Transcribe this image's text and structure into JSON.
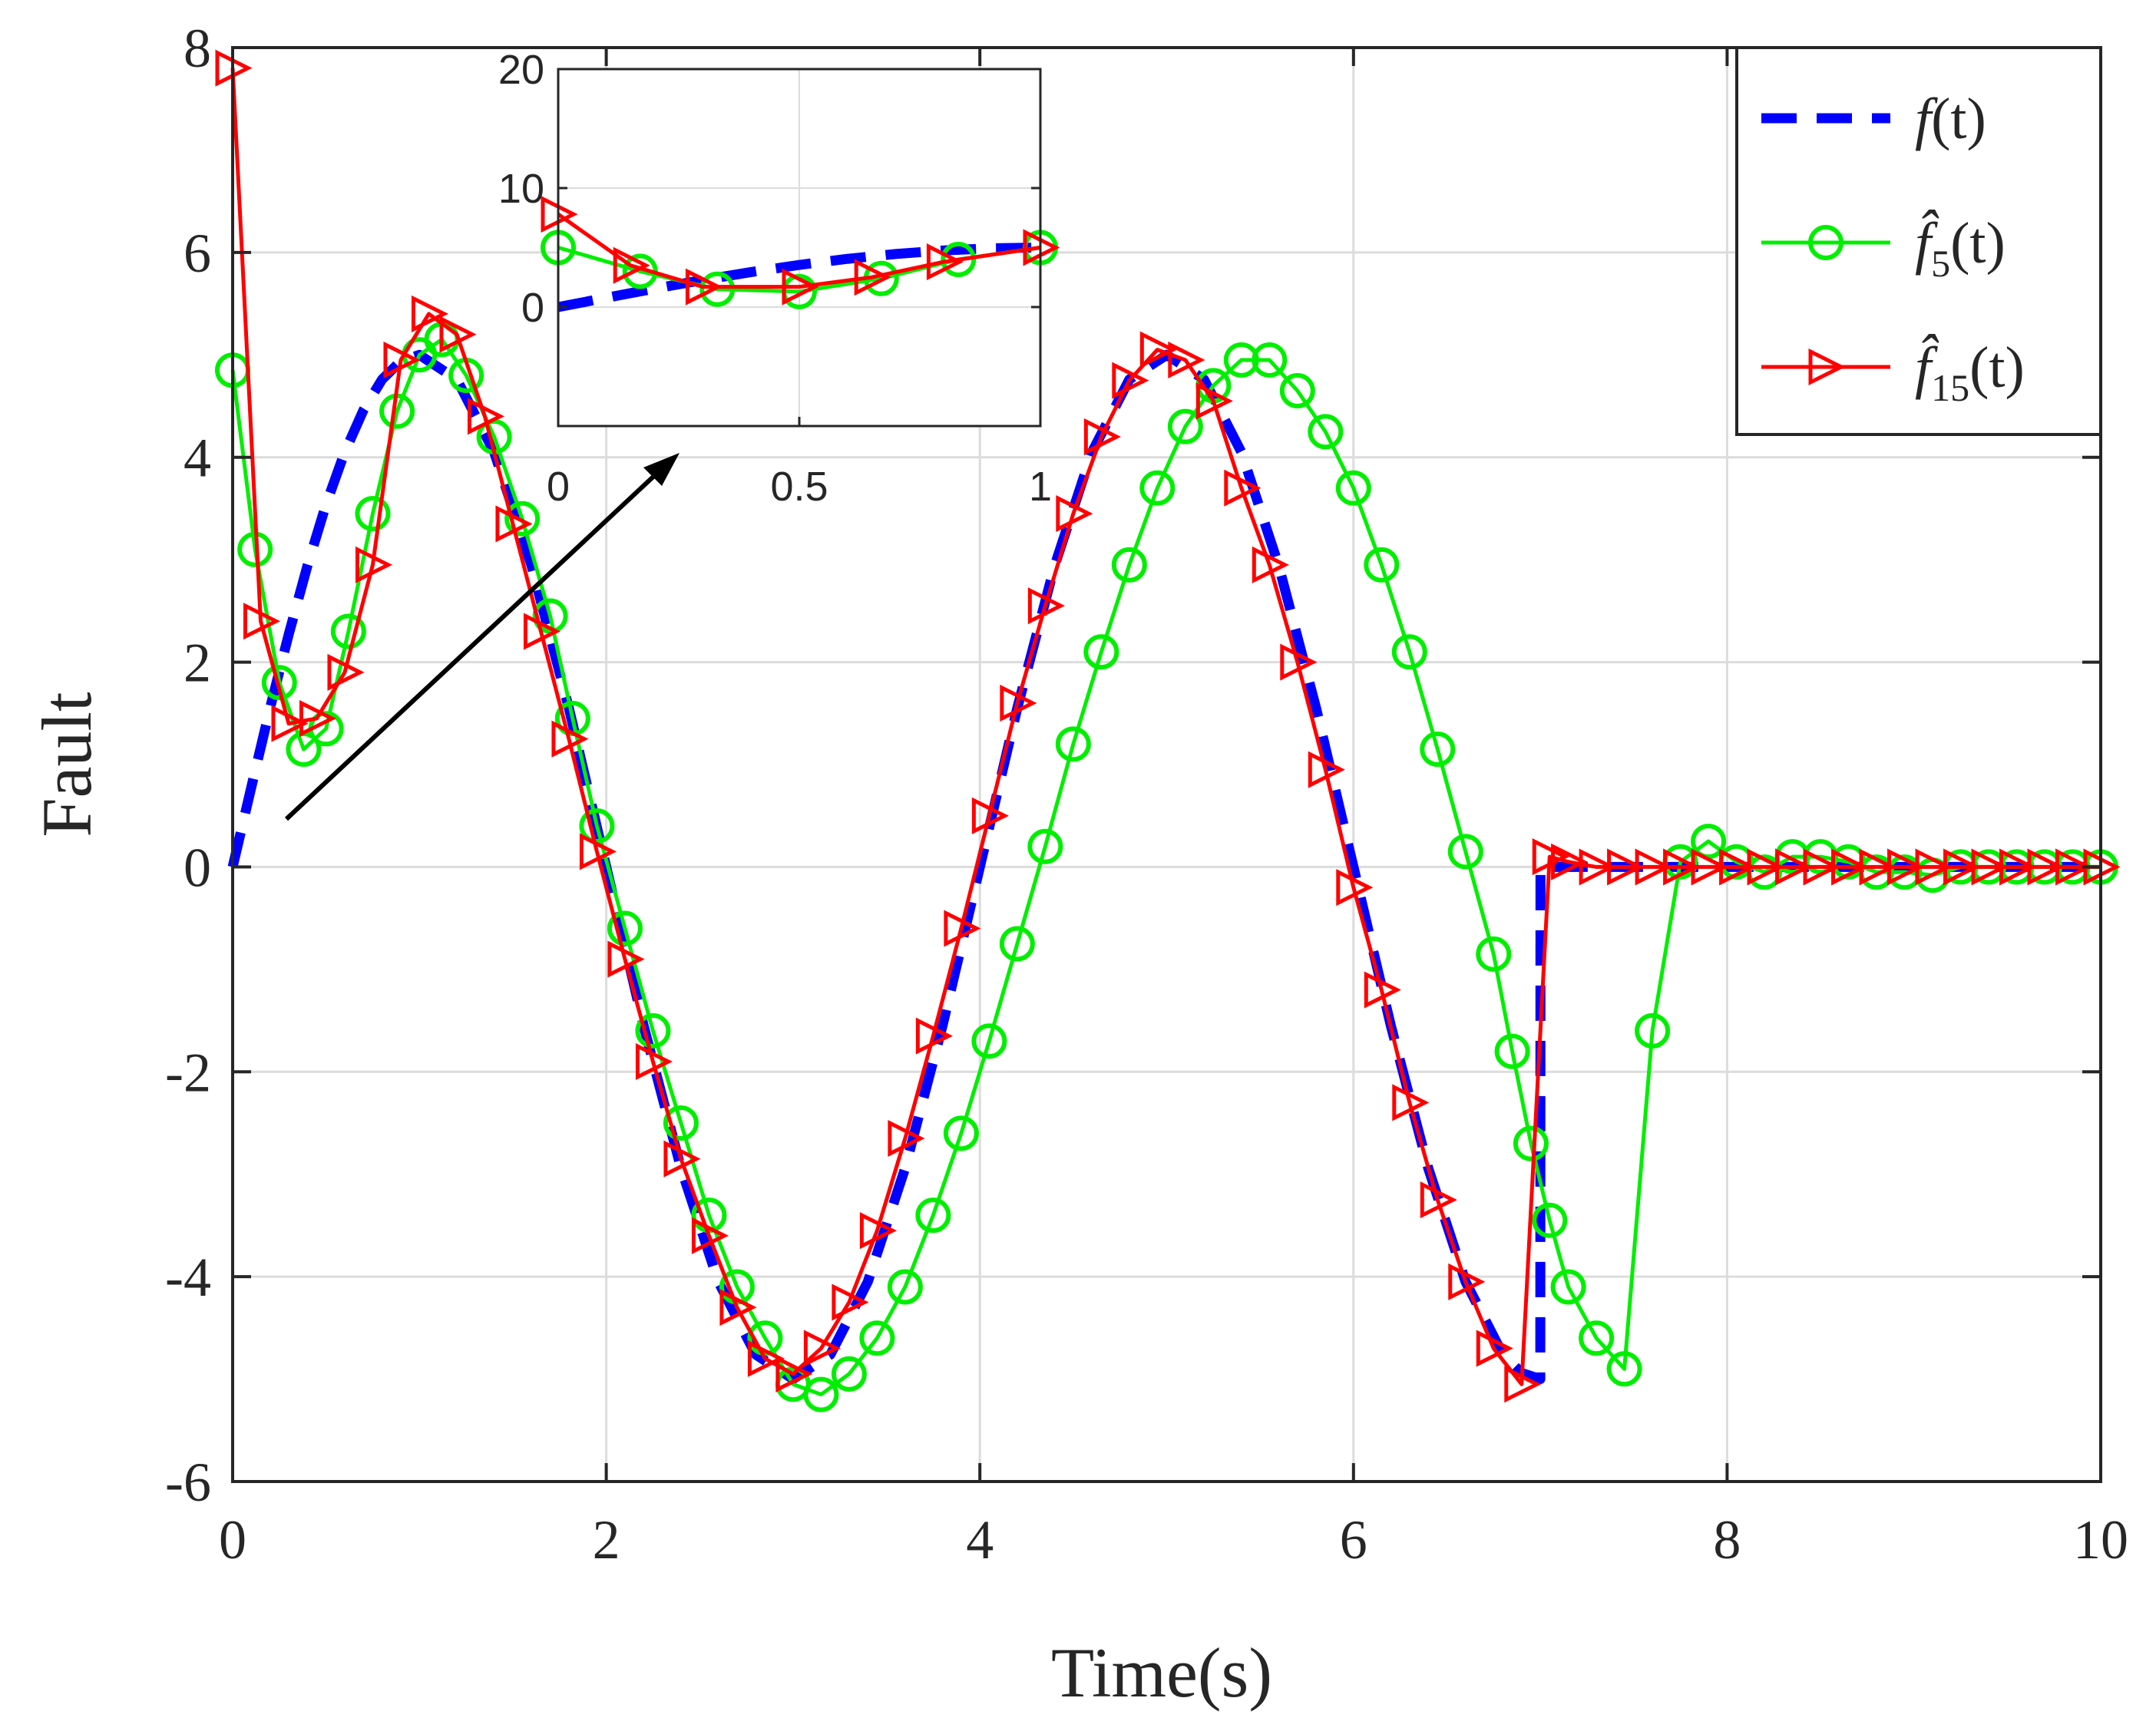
{
  "chart_data": {
    "type": "line",
    "title": "",
    "xlabel": "Time(s)",
    "ylabel": "Fault",
    "xlim": [
      0,
      10
    ],
    "ylim": [
      -6,
      8
    ],
    "xticks": [
      0,
      2,
      4,
      6,
      8,
      10
    ],
    "xtick_labels": [
      "0",
      "2",
      "4",
      "6",
      "8",
      "10"
    ],
    "yticks": [
      -6,
      -4,
      -2,
      0,
      2,
      4,
      6,
      8
    ],
    "ytick_labels": [
      "-6",
      "-4",
      "-2",
      "0",
      "2",
      "4",
      "6",
      "8"
    ],
    "grid": true,
    "legend_position": "top-right",
    "series": [
      {
        "name": "f(t)",
        "legend_main": "f",
        "legend_sub": "",
        "legend_arg": "(t)",
        "color": "#0000ff",
        "style": "dashed",
        "marker": "none",
        "x": [
          0,
          0.1,
          0.2,
          0.3,
          0.4,
          0.5,
          0.6,
          0.7,
          0.8,
          0.9,
          1.0,
          1.2,
          1.4,
          1.6,
          1.8,
          2.0,
          2.2,
          2.4,
          2.6,
          2.8,
          3.0,
          3.2,
          3.4,
          3.6,
          3.8,
          4.0,
          4.2,
          4.4,
          4.6,
          4.8,
          5.0,
          5.2,
          5.4,
          5.6,
          5.8,
          6.0,
          6.2,
          6.4,
          6.6,
          6.8,
          6.9,
          7.0,
          7.001,
          8.0,
          9.0,
          10.0
        ],
        "y": [
          0,
          0.78,
          1.55,
          2.27,
          2.94,
          3.54,
          4.05,
          4.46,
          4.76,
          4.94,
          5.0,
          4.76,
          4.05,
          2.94,
          1.55,
          0,
          -1.55,
          -2.94,
          -4.05,
          -4.76,
          -5.0,
          -4.76,
          -4.05,
          -2.94,
          -1.55,
          0,
          1.55,
          2.94,
          4.05,
          4.76,
          5.0,
          4.76,
          4.05,
          2.94,
          1.55,
          0,
          -1.55,
          -2.94,
          -4.05,
          -4.76,
          -4.94,
          -5.0,
          0,
          0,
          0,
          0
        ]
      },
      {
        "name": "f̂5(t)",
        "legend_main": "f̂",
        "legend_sub": "5",
        "legend_arg": "(t)",
        "color": "#00ee00",
        "style": "solid",
        "marker": "circle",
        "x": [
          0,
          0.12,
          0.25,
          0.38,
          0.5,
          0.62,
          0.75,
          0.88,
          1.0,
          1.12,
          1.25,
          1.4,
          1.55,
          1.7,
          1.82,
          1.95,
          2.1,
          2.25,
          2.4,
          2.55,
          2.7,
          2.85,
          3.0,
          3.15,
          3.3,
          3.45,
          3.6,
          3.75,
          3.9,
          4.05,
          4.2,
          4.35,
          4.5,
          4.65,
          4.8,
          4.95,
          5.1,
          5.25,
          5.4,
          5.55,
          5.7,
          5.85,
          6.0,
          6.15,
          6.3,
          6.45,
          6.6,
          6.75,
          6.85,
          6.95,
          7.05,
          7.15,
          7.3,
          7.45,
          7.6,
          7.75,
          7.9,
          8.05,
          8.2,
          8.35,
          8.5,
          8.65,
          8.8,
          8.95,
          9.1,
          9.25,
          9.4,
          9.55,
          9.7,
          9.85,
          10.0
        ],
        "y": [
          4.85,
          3.1,
          1.8,
          1.15,
          1.35,
          2.3,
          3.45,
          4.45,
          5.0,
          5.15,
          4.8,
          4.2,
          3.4,
          2.45,
          1.45,
          0.4,
          -0.6,
          -1.6,
          -2.5,
          -3.4,
          -4.1,
          -4.6,
          -5.05,
          -5.15,
          -4.95,
          -4.6,
          -4.1,
          -3.4,
          -2.6,
          -1.7,
          -0.75,
          0.2,
          1.2,
          2.1,
          2.95,
          3.7,
          4.3,
          4.7,
          4.95,
          4.95,
          4.65,
          4.25,
          3.7,
          2.95,
          2.1,
          1.15,
          0.15,
          -0.85,
          -1.8,
          -2.7,
          -3.45,
          -4.1,
          -4.6,
          -4.9,
          -1.6,
          0.05,
          0.25,
          0.05,
          -0.05,
          0.1,
          0.1,
          0.05,
          -0.05,
          -0.05,
          -0.08,
          0.0,
          0.0,
          0.0,
          0.0,
          0.0,
          0.0
        ]
      },
      {
        "name": "f̂15(t)",
        "legend_main": "f̂",
        "legend_sub": "15",
        "legend_arg": "(t)",
        "color": "#ff0000",
        "style": "solid",
        "marker": "triangle-right",
        "x": [
          0,
          0.15,
          0.3,
          0.45,
          0.6,
          0.75,
          0.9,
          1.05,
          1.2,
          1.35,
          1.5,
          1.65,
          1.8,
          1.95,
          2.1,
          2.25,
          2.4,
          2.55,
          2.7,
          2.85,
          3.0,
          3.15,
          3.3,
          3.45,
          3.6,
          3.75,
          3.9,
          4.05,
          4.2,
          4.35,
          4.5,
          4.65,
          4.8,
          4.95,
          5.1,
          5.25,
          5.4,
          5.55,
          5.7,
          5.85,
          6.0,
          6.15,
          6.3,
          6.45,
          6.6,
          6.75,
          6.9,
          7.05,
          7.15,
          7.3,
          7.45,
          7.6,
          7.75,
          7.9,
          8.05,
          8.2,
          8.35,
          8.5,
          8.65,
          8.8,
          8.95,
          9.1,
          9.25,
          9.4,
          9.55,
          9.7,
          9.85,
          10.0
        ],
        "y": [
          7.8,
          2.4,
          1.4,
          1.45,
          1.9,
          2.95,
          4.95,
          5.4,
          5.2,
          4.4,
          3.35,
          2.3,
          1.25,
          0.15,
          -0.9,
          -1.9,
          -2.85,
          -3.6,
          -4.3,
          -4.8,
          -4.95,
          -4.7,
          -4.25,
          -3.55,
          -2.65,
          -1.65,
          -0.6,
          0.5,
          1.6,
          2.55,
          3.45,
          4.2,
          4.75,
          5.05,
          4.95,
          4.55,
          3.7,
          2.95,
          2.0,
          0.95,
          -0.2,
          -1.2,
          -2.3,
          -3.25,
          -4.05,
          -4.7,
          -5.05,
          0.1,
          0.05,
          0.0,
          0.0,
          0.0,
          0.0,
          0.0,
          0.0,
          0.0,
          0.0,
          0.0,
          0.0,
          0.0,
          0.0,
          0.0,
          0.0,
          0.0,
          0.0,
          0.0,
          0.0,
          0.0
        ]
      }
    ],
    "inset": {
      "xlim": [
        0,
        1
      ],
      "ylim": [
        -10,
        20
      ],
      "xticks": [
        0,
        0.5,
        1
      ],
      "xtick_labels": [
        "0",
        "0.5",
        "1"
      ],
      "yticks": [
        0,
        10,
        20
      ],
      "ytick_labels": [
        "0",
        "10",
        "20"
      ],
      "grid": true,
      "series": [
        {
          "name": "f(t)",
          "x": [
            0,
            0.1,
            0.2,
            0.3,
            0.4,
            0.5,
            0.6,
            0.7,
            0.8,
            0.9,
            1.0
          ],
          "y": [
            0,
            0.78,
            1.55,
            2.27,
            2.94,
            3.54,
            4.05,
            4.46,
            4.76,
            4.94,
            5.0
          ]
        },
        {
          "name": "f̂5(t)",
          "x": [
            0,
            0.17,
            0.33,
            0.5,
            0.67,
            0.83,
            1.0
          ],
          "y": [
            5.0,
            3.0,
            1.5,
            1.3,
            2.4,
            4.0,
            5.0
          ]
        },
        {
          "name": "f̂15(t)",
          "x": [
            0,
            0.15,
            0.3,
            0.5,
            0.65,
            0.8,
            1.0
          ],
          "y": [
            7.8,
            3.5,
            1.7,
            1.7,
            2.5,
            3.8,
            5.0
          ]
        }
      ]
    }
  }
}
